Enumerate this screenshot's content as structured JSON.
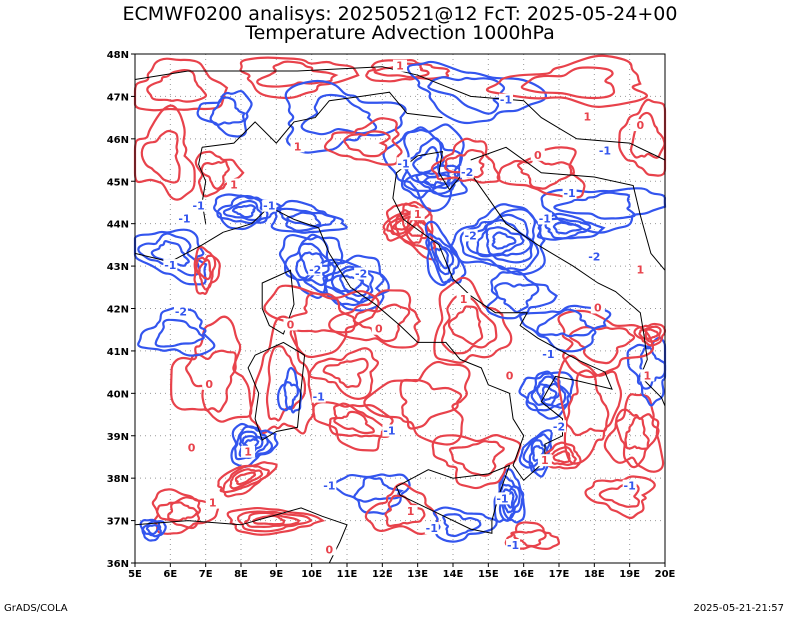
{
  "title_line1": "ECMWF0200 analisys: 20250521@12 FcT: 2025-05-24+00",
  "title_line2": "Temperature Advection 1000hPa",
  "footer_left": "GrADS/COLA",
  "footer_right": "2025-05-21-21:57",
  "map": {
    "lon_range": [
      5,
      20
    ],
    "lat_range": [
      36,
      48
    ],
    "x_ticks": [
      "5E",
      "6E",
      "7E",
      "8E",
      "9E",
      "10E",
      "11E",
      "12E",
      "13E",
      "14E",
      "15E",
      "16E",
      "17E",
      "18E",
      "19E",
      "20E"
    ],
    "y_ticks": [
      "36N",
      "37N",
      "38N",
      "39N",
      "40N",
      "41N",
      "42N",
      "43N",
      "44N",
      "45N",
      "46N",
      "47N",
      "48N"
    ],
    "grid": true,
    "colors": {
      "positive": "#e8424b",
      "negative": "#3355ee",
      "coast": "#000000",
      "grid": "#999999"
    },
    "contour_labels": [
      {
        "text": "-1",
        "lon": 6.4,
        "lat": 44.1,
        "sign": "neg"
      },
      {
        "text": "-1",
        "lon": 8.8,
        "lat": 44.4,
        "sign": "neg"
      },
      {
        "text": "-2",
        "lon": 10.1,
        "lat": 42.9,
        "sign": "neg"
      },
      {
        "text": "-2",
        "lon": 11.4,
        "lat": 42.8,
        "sign": "neg"
      },
      {
        "text": "-1",
        "lon": 12.6,
        "lat": 45.4,
        "sign": "neg"
      },
      {
        "text": "-2",
        "lon": 14.5,
        "lat": 43.7,
        "sign": "neg"
      },
      {
        "text": "-2",
        "lon": 14.4,
        "lat": 45.2,
        "sign": "neg"
      },
      {
        "text": "-1",
        "lon": 15.5,
        "lat": 46.9,
        "sign": "neg"
      },
      {
        "text": "-1",
        "lon": 17.3,
        "lat": 44.7,
        "sign": "neg"
      },
      {
        "text": "-2",
        "lon": 18.0,
        "lat": 43.2,
        "sign": "neg"
      },
      {
        "text": "-1",
        "lon": 18.3,
        "lat": 45.7,
        "sign": "neg"
      },
      {
        "text": "-1",
        "lon": 6.8,
        "lat": 44.4,
        "sign": "neg"
      },
      {
        "text": "-2",
        "lon": 6.3,
        "lat": 41.9,
        "sign": "neg"
      },
      {
        "text": "-1",
        "lon": 6.0,
        "lat": 43.0,
        "sign": "neg"
      },
      {
        "text": "-1",
        "lon": 10.2,
        "lat": 39.9,
        "sign": "neg"
      },
      {
        "text": "-1",
        "lon": 12.2,
        "lat": 39.1,
        "sign": "neg"
      },
      {
        "text": "-1",
        "lon": 10.5,
        "lat": 37.8,
        "sign": "neg"
      },
      {
        "text": "-1",
        "lon": 16.7,
        "lat": 40.9,
        "sign": "neg"
      },
      {
        "text": "-2",
        "lon": 17.0,
        "lat": 39.2,
        "sign": "neg"
      },
      {
        "text": "-1",
        "lon": 15.4,
        "lat": 37.5,
        "sign": "neg"
      },
      {
        "text": "-1",
        "lon": 15.7,
        "lat": 36.4,
        "sign": "neg"
      },
      {
        "text": "-1",
        "lon": 13.4,
        "lat": 36.8,
        "sign": "neg"
      },
      {
        "text": "-1",
        "lon": 19.0,
        "lat": 37.8,
        "sign": "neg"
      },
      {
        "text": "-1",
        "lon": 16.6,
        "lat": 44.1,
        "sign": "neg"
      },
      {
        "text": "1",
        "lon": 12.5,
        "lat": 47.7,
        "sign": "pos"
      },
      {
        "text": "1",
        "lon": 9.6,
        "lat": 45.8,
        "sign": "pos"
      },
      {
        "text": "1",
        "lon": 7.8,
        "lat": 44.9,
        "sign": "pos"
      },
      {
        "text": "1",
        "lon": 13.0,
        "lat": 44.2,
        "sign": "pos"
      },
      {
        "text": "1",
        "lon": 14.3,
        "lat": 42.2,
        "sign": "pos"
      },
      {
        "text": "1",
        "lon": 19.3,
        "lat": 42.9,
        "sign": "pos"
      },
      {
        "text": "1",
        "lon": 7.2,
        "lat": 37.4,
        "sign": "pos"
      },
      {
        "text": "1",
        "lon": 8.2,
        "lat": 38.6,
        "sign": "pos"
      },
      {
        "text": "1",
        "lon": 12.8,
        "lat": 37.2,
        "sign": "pos"
      },
      {
        "text": "1",
        "lon": 16.6,
        "lat": 38.4,
        "sign": "pos"
      },
      {
        "text": "1",
        "lon": 19.5,
        "lat": 40.4,
        "sign": "pos"
      },
      {
        "text": "1",
        "lon": 17.8,
        "lat": 46.5,
        "sign": "pos"
      },
      {
        "text": "0",
        "lon": 7.1,
        "lat": 40.2,
        "sign": "zero"
      },
      {
        "text": "0",
        "lon": 9.4,
        "lat": 41.6,
        "sign": "zero"
      },
      {
        "text": "0",
        "lon": 16.4,
        "lat": 45.6,
        "sign": "zero"
      },
      {
        "text": "0",
        "lon": 19.3,
        "lat": 46.3,
        "sign": "zero"
      },
      {
        "text": "0",
        "lon": 11.9,
        "lat": 41.5,
        "sign": "zero"
      },
      {
        "text": "0",
        "lon": 15.6,
        "lat": 40.4,
        "sign": "zero"
      },
      {
        "text": "0",
        "lon": 6.6,
        "lat": 38.7,
        "sign": "zero"
      },
      {
        "text": "0",
        "lon": 10.5,
        "lat": 36.3,
        "sign": "zero"
      },
      {
        "text": "0",
        "lon": 18.1,
        "lat": 42.0,
        "sign": "zero"
      }
    ]
  }
}
